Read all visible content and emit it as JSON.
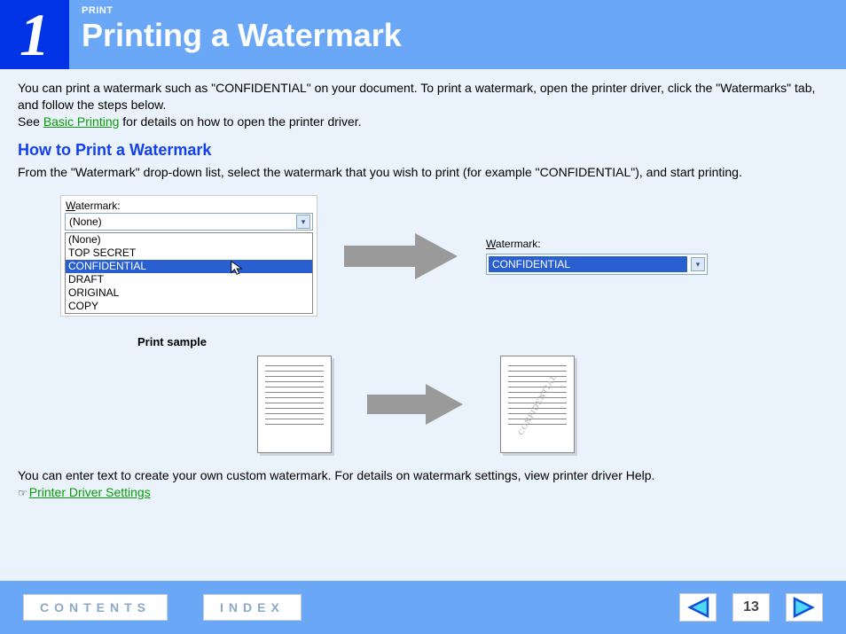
{
  "header": {
    "chapter": "1",
    "section_label": "PRINT",
    "title": "Printing a Watermark"
  },
  "intro": {
    "p1": "You can print a watermark such as \"CONFIDENTIAL\" on your document. To print a watermark, open the printer driver, click the \"Watermarks\" tab, and follow the steps below.",
    "p2_prefix": "See ",
    "p2_link": "Basic Printing",
    "p2_suffix": " for details on how to open the printer driver."
  },
  "howto": {
    "title": "How to Print a Watermark",
    "desc": "From the \"Watermark\" drop-down list, select the watermark that you wish to print (for example \"CONFIDENTIAL\"), and start printing."
  },
  "dropdown": {
    "label_underlined": "W",
    "label_rest": "atermark:",
    "selected": "(None)",
    "items": [
      "(None)",
      "TOP SECRET",
      "CONFIDENTIAL",
      "DRAFT",
      "ORIGINAL",
      "COPY"
    ],
    "highlighted_index": 2
  },
  "result": {
    "label_underlined": "W",
    "label_rest": "atermark:",
    "value": "CONFIDENTIAL"
  },
  "sample": {
    "label": "Print sample",
    "watermark_text": "CONFIDENTIAL",
    "line_count": 12
  },
  "bottom": {
    "text": "You can enter text to create your own custom watermark. For details on watermark settings, view printer driver Help.",
    "hand": "☞",
    "link": "Printer Driver Settings"
  },
  "footer": {
    "contents": "CONTENTS",
    "index": "INDEX",
    "page": "13"
  },
  "colors": {
    "header_bg": "#6aa8f7",
    "chapter_bg": "#0033e6",
    "body_bg": "#eaf2fb",
    "link_green": "#0a9a0a",
    "section_blue": "#1240f0",
    "select_hl": "#2a5fd0",
    "arrow_fill": "#9a9a9a",
    "nav_tri_blue": "#1050d8",
    "nav_tri_cyan": "#4fd8f3"
  }
}
